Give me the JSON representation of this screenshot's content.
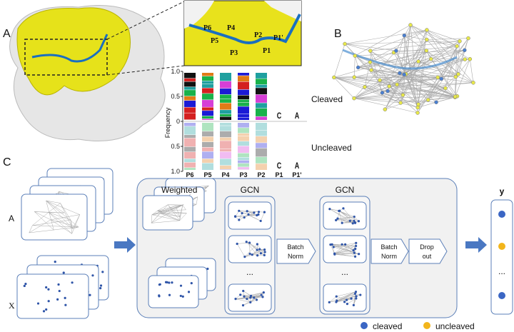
{
  "panel_a": {
    "label": "A",
    "zoom_residues": [
      "P6",
      "P5",
      "P4",
      "P3",
      "P2",
      "P1",
      "P1'"
    ],
    "logo": {
      "y_label": "Frequency",
      "y_ticks": [
        "1.0",
        "0.5",
        "0",
        "0.5",
        "1.0"
      ],
      "positions": [
        "P6",
        "P5",
        "P4",
        "P3",
        "P2",
        "P1",
        "P1'"
      ],
      "cleaved": "Cleaved",
      "uncleaved": "Uncleaved",
      "p1_letter": "C",
      "p1prime_letter": "A"
    }
  },
  "panel_b": {
    "label": "B"
  },
  "panel_c": {
    "label": "C",
    "input_a": "A",
    "input_x": "X",
    "weighted": "Weighted",
    "gcn": [
      "GCN",
      "GCN"
    ],
    "batch_norm": [
      [
        "Batch",
        "Norm"
      ],
      [
        "Batch",
        "Norm"
      ]
    ],
    "dropout": [
      "Drop",
      "out"
    ],
    "ellipsis": [
      "...",
      "...",
      "..."
    ],
    "output": "y",
    "legend": {
      "cleaved": "cleaved",
      "uncleaved": "uncleaved"
    }
  }
}
